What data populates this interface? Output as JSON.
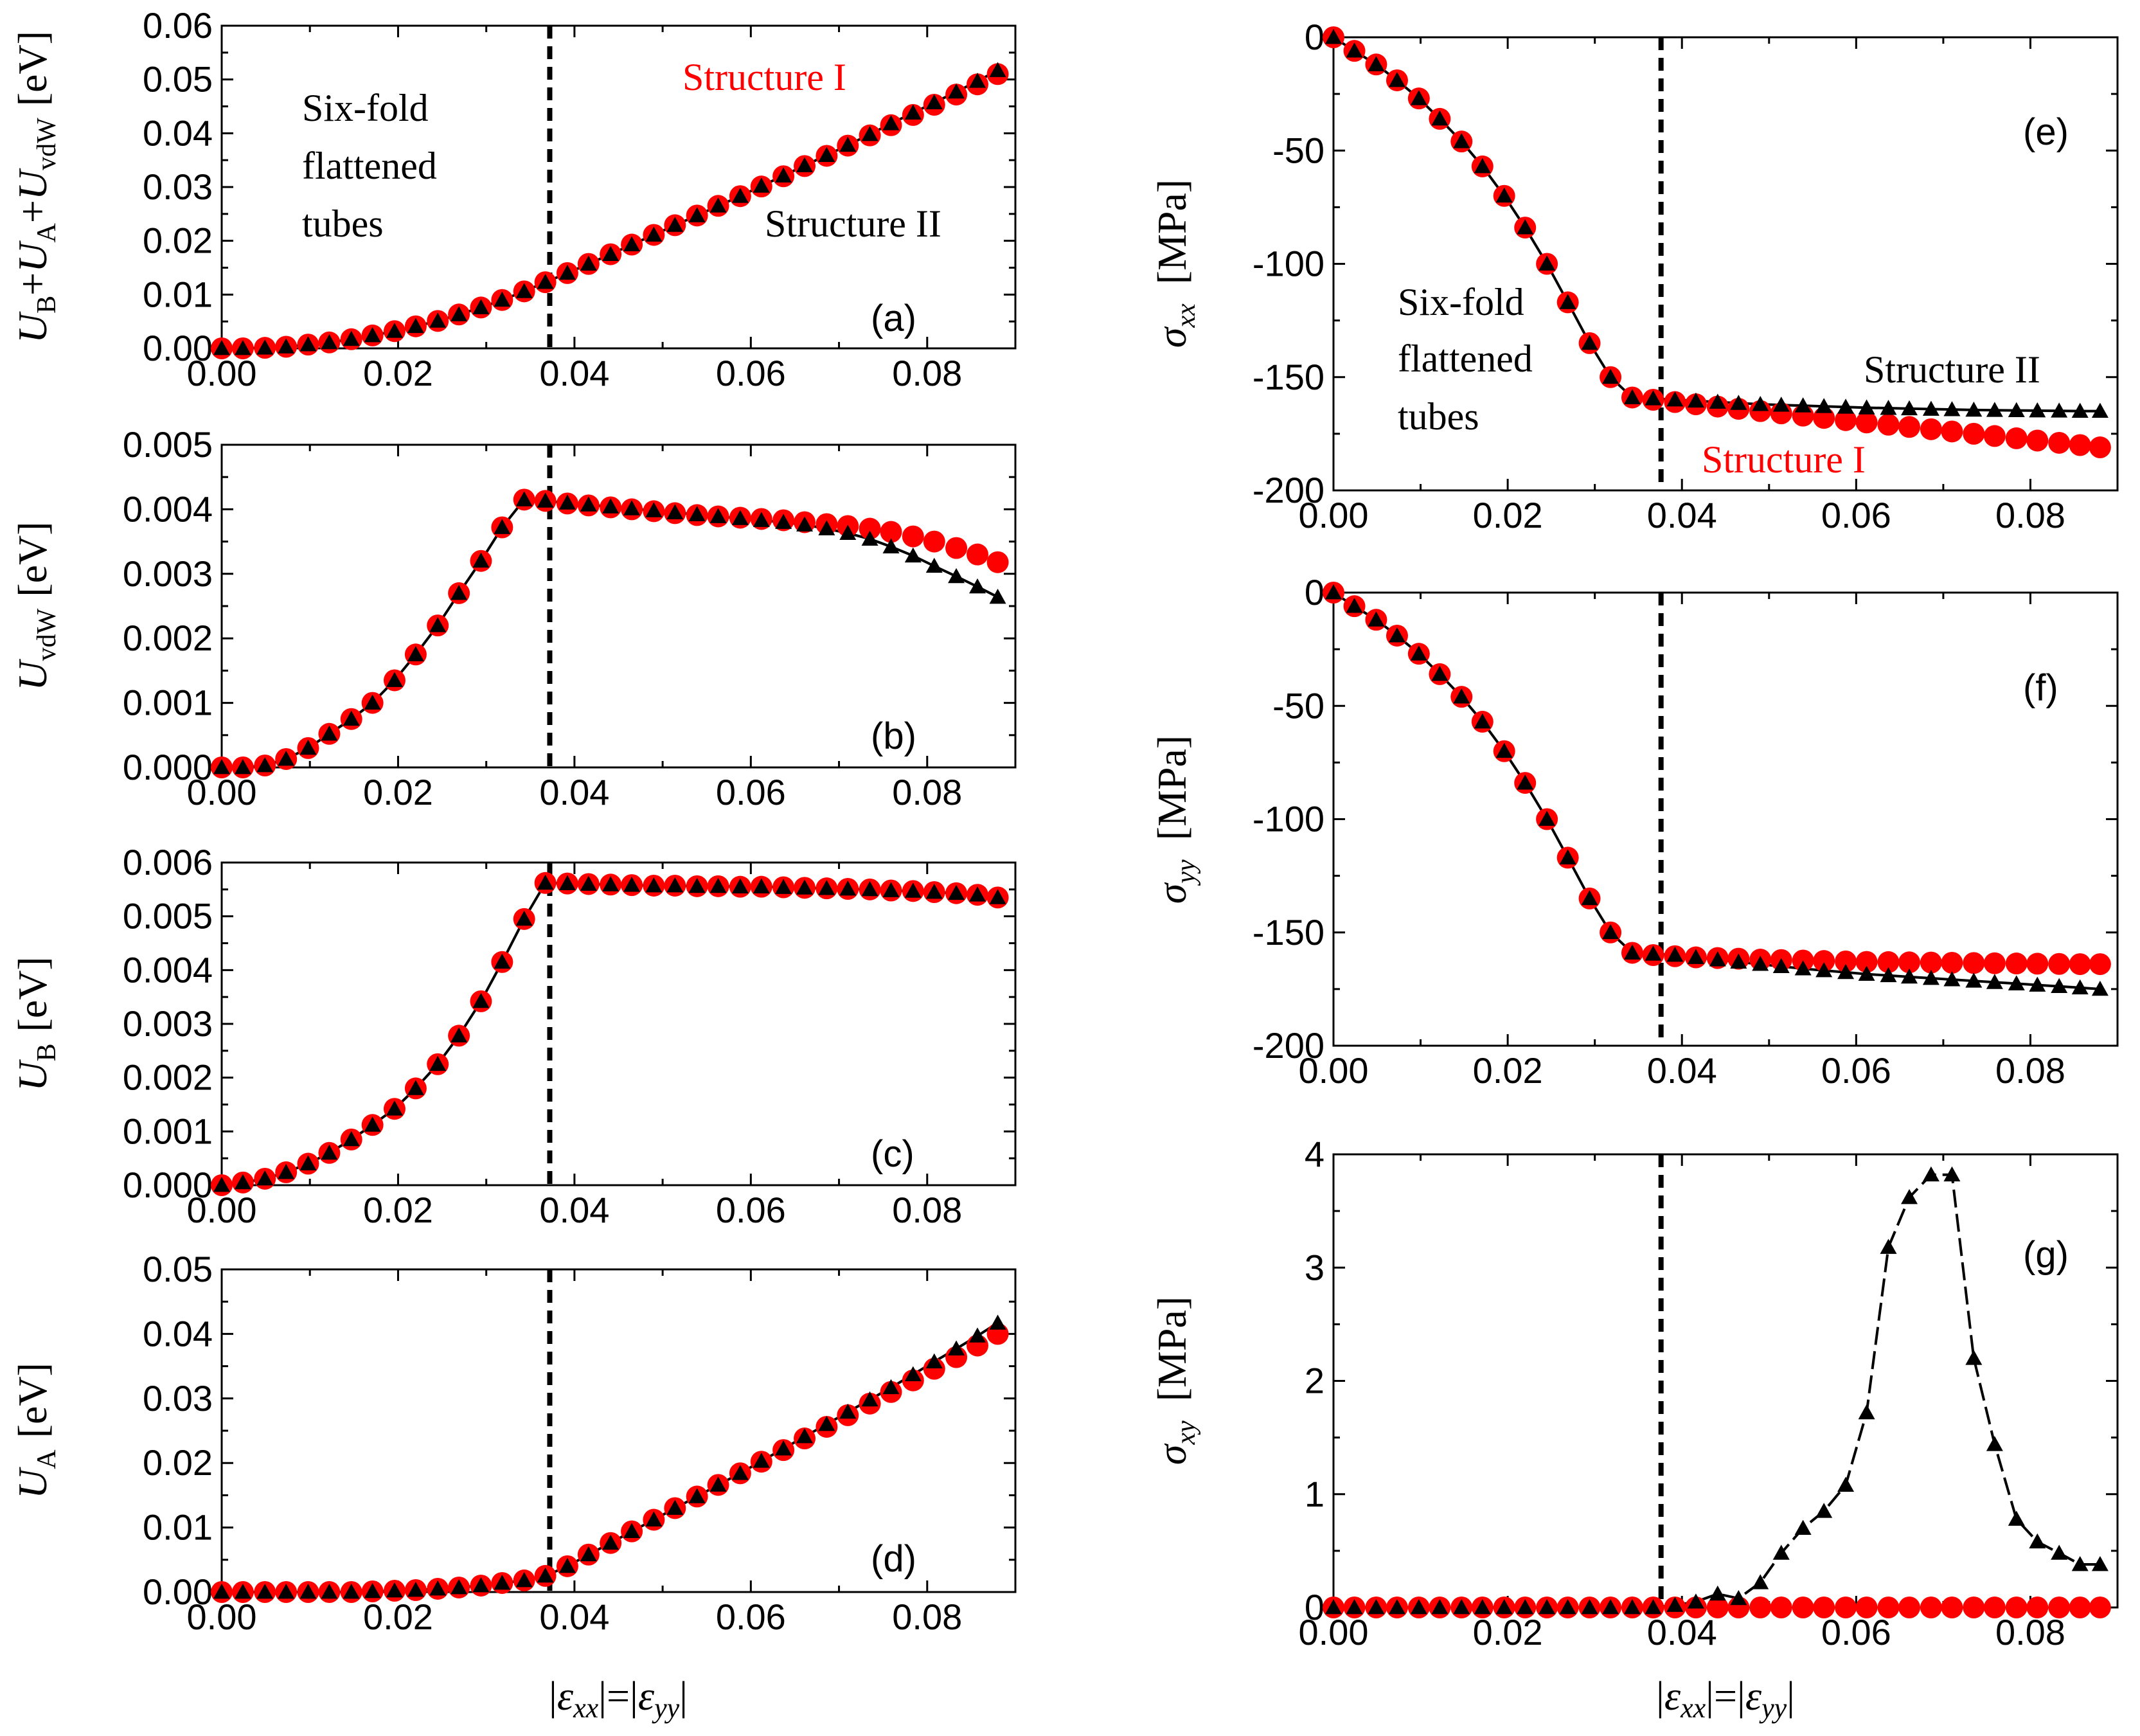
{
  "colors": {
    "structure1": "#ff0000",
    "structure2": "#000000",
    "divider": "#000000"
  },
  "x_axis_label": {
    "pre": "|",
    "eps1": "ε",
    "sub1": "xx",
    "mid": "|=|",
    "eps2": "ε",
    "sub2": "yy",
    "post": "|"
  },
  "chart_data": [
    {
      "id": "a",
      "type": "scatter",
      "panel_label": "(a)",
      "xlim": [
        0,
        0.09
      ],
      "ylim": [
        0,
        0.06
      ],
      "xticks": [
        "0.00",
        "0.02",
        "0.04",
        "0.06",
        "0.08"
      ],
      "yticks": [
        "0.00",
        "0.01",
        "0.02",
        "0.03",
        "0.04",
        "0.05",
        "0.06"
      ],
      "ylabel": {
        "u1": "U",
        "s1": "B",
        "plus1": "+",
        "u2": "U",
        "s2": "A",
        "plus2": "+",
        "u3": "U",
        "s3": "vdW",
        "unit": "[eV]"
      },
      "annotations": {
        "phase_line1": "Six-fold",
        "phase_line2": "flattened",
        "phase_line3": "tubes",
        "structure1": "Structure I",
        "structure2": "Structure II"
      },
      "vline_x": 0.0372,
      "series": [
        {
          "name": "Structure I",
          "marker": "circle",
          "values": [
            0,
            0,
            0.0001,
            0.0003,
            0.0007,
            0.0011,
            0.0017,
            0.0024,
            0.0032,
            0.0041,
            0.0051,
            0.0063,
            0.0076,
            0.009,
            0.0106,
            0.0123,
            0.014,
            0.0157,
            0.0175,
            0.0193,
            0.0211,
            0.0229,
            0.0247,
            0.0265,
            0.0283,
            0.0301,
            0.032,
            0.0339,
            0.0358,
            0.0377,
            0.0396,
            0.0415,
            0.0434,
            0.0453,
            0.0472,
            0.0491,
            0.051
          ]
        },
        {
          "name": "Structure II",
          "marker": "triangle",
          "values": [
            0,
            0,
            0.0001,
            0.0003,
            0.0007,
            0.0011,
            0.0017,
            0.0024,
            0.0032,
            0.0041,
            0.0051,
            0.0063,
            0.0076,
            0.009,
            0.0106,
            0.0123,
            0.014,
            0.0157,
            0.0175,
            0.0193,
            0.0211,
            0.0229,
            0.0247,
            0.0265,
            0.0283,
            0.0302,
            0.0321,
            0.034,
            0.0359,
            0.0378,
            0.0398,
            0.0418,
            0.0438,
            0.0457,
            0.0477,
            0.0497,
            0.0517
          ]
        }
      ]
    },
    {
      "id": "b",
      "type": "scatter",
      "panel_label": "(b)",
      "xlim": [
        0,
        0.09
      ],
      "ylim": [
        0,
        0.005
      ],
      "xticks": [
        "0.00",
        "0.02",
        "0.04",
        "0.06",
        "0.08"
      ],
      "yticks": [
        "0.000",
        "0.001",
        "0.002",
        "0.003",
        "0.004",
        "0.005"
      ],
      "ylabel": {
        "u1": "U",
        "s1": "vdW",
        "unit": "[eV]"
      },
      "vline_x": 0.0372,
      "series": [
        {
          "name": "Structure I",
          "marker": "circle",
          "values": [
            0,
            0,
            3e-05,
            0.00013,
            0.0003,
            0.00052,
            0.00075,
            0.001,
            0.00135,
            0.00175,
            0.0022,
            0.0027,
            0.0032,
            0.00372,
            0.00415,
            0.00413,
            0.00409,
            0.00406,
            0.00403,
            0.004,
            0.00397,
            0.00394,
            0.00391,
            0.00389,
            0.00387,
            0.00385,
            0.00383,
            0.0038,
            0.00377,
            0.00374,
            0.0037,
            0.00365,
            0.00358,
            0.0035,
            0.0034,
            0.0033,
            0.00318
          ]
        },
        {
          "name": "Structure II",
          "marker": "triangle",
          "values": [
            0,
            0,
            3e-05,
            0.00013,
            0.0003,
            0.00052,
            0.00075,
            0.001,
            0.00135,
            0.00175,
            0.0022,
            0.0027,
            0.0032,
            0.00372,
            0.00415,
            0.00413,
            0.0041,
            0.00407,
            0.00404,
            0.00401,
            0.00398,
            0.00395,
            0.00392,
            0.00389,
            0.00386,
            0.00383,
            0.0038,
            0.00376,
            0.0037,
            0.00363,
            0.00354,
            0.00342,
            0.00328,
            0.00312,
            0.00296,
            0.0028,
            0.00264
          ]
        }
      ]
    },
    {
      "id": "c",
      "type": "scatter",
      "panel_label": "(c)",
      "xlim": [
        0,
        0.09
      ],
      "ylim": [
        0,
        0.006
      ],
      "xticks": [
        "0.00",
        "0.02",
        "0.04",
        "0.06",
        "0.08"
      ],
      "yticks": [
        "0.000",
        "0.001",
        "0.002",
        "0.003",
        "0.004",
        "0.005",
        "0.006"
      ],
      "ylabel": {
        "u1": "U",
        "s1": "B",
        "unit": "[eV]"
      },
      "vline_x": 0.0372,
      "series": [
        {
          "name": "Structure I",
          "marker": "circle",
          "values": [
            0,
            5e-05,
            0.00012,
            0.00024,
            0.0004,
            0.0006,
            0.00085,
            0.00112,
            0.00142,
            0.0018,
            0.00225,
            0.00278,
            0.00342,
            0.00415,
            0.00495,
            0.00562,
            0.00561,
            0.0056,
            0.00559,
            0.00558,
            0.00557,
            0.00557,
            0.00556,
            0.00556,
            0.00555,
            0.00555,
            0.00554,
            0.00553,
            0.00552,
            0.00551,
            0.0055,
            0.00548,
            0.00547,
            0.00545,
            0.00543,
            0.0054,
            0.00535
          ]
        },
        {
          "name": "Structure II",
          "marker": "triangle",
          "values": [
            0,
            5e-05,
            0.00012,
            0.00024,
            0.0004,
            0.0006,
            0.00085,
            0.00112,
            0.00142,
            0.0018,
            0.00225,
            0.00278,
            0.00342,
            0.00415,
            0.00495,
            0.00562,
            0.00561,
            0.0056,
            0.00559,
            0.00558,
            0.00557,
            0.00557,
            0.00556,
            0.00556,
            0.00555,
            0.00555,
            0.00554,
            0.00553,
            0.00552,
            0.00551,
            0.0055,
            0.00548,
            0.00547,
            0.00545,
            0.00543,
            0.0054,
            0.00535
          ]
        }
      ]
    },
    {
      "id": "d",
      "type": "scatter",
      "panel_label": "(d)",
      "xlim": [
        0,
        0.09
      ],
      "ylim": [
        0,
        0.05
      ],
      "xticks": [
        "0.00",
        "0.02",
        "0.04",
        "0.06",
        "0.08"
      ],
      "yticks": [
        "0.00",
        "0.01",
        "0.02",
        "0.03",
        "0.04",
        "0.05"
      ],
      "ylabel": {
        "u1": "U",
        "s1": "A",
        "unit": "[eV]"
      },
      "vline_x": 0.0372,
      "series": [
        {
          "name": "Structure I",
          "marker": "circle",
          "values": [
            0,
            0,
            0,
            0,
            0,
            0,
            0,
            0.0001,
            0.0002,
            0.0003,
            0.0005,
            0.0007,
            0.001,
            0.0014,
            0.0018,
            0.0025,
            0.004,
            0.0058,
            0.0076,
            0.0094,
            0.0112,
            0.013,
            0.0148,
            0.0166,
            0.0184,
            0.0202,
            0.022,
            0.0238,
            0.0256,
            0.0274,
            0.0292,
            0.031,
            0.0328,
            0.0346,
            0.0364,
            0.0382,
            0.04
          ]
        },
        {
          "name": "Structure II",
          "marker": "triangle",
          "values": [
            0,
            0,
            0,
            0,
            0,
            0,
            0,
            0.0001,
            0.0002,
            0.0003,
            0.0005,
            0.0007,
            0.001,
            0.0014,
            0.0018,
            0.0025,
            0.004,
            0.0058,
            0.0076,
            0.0094,
            0.0112,
            0.013,
            0.0148,
            0.0166,
            0.0184,
            0.0203,
            0.0222,
            0.0241,
            0.026,
            0.0279,
            0.0298,
            0.0317,
            0.0337,
            0.0357,
            0.0377,
            0.0397,
            0.0417
          ]
        }
      ]
    },
    {
      "id": "e",
      "type": "scatter",
      "panel_label": "(e)",
      "xlim": [
        0,
        0.09
      ],
      "ylim": [
        -200,
        0
      ],
      "xticks": [
        "0.00",
        "0.02",
        "0.04",
        "0.06",
        "0.08"
      ],
      "yticks": [
        "-200",
        "-150",
        "-100",
        "-50",
        "0"
      ],
      "ylabel": {
        "sigma": "σ",
        "sub": "xx",
        "unit": "[MPa]"
      },
      "annotations": {
        "phase_line1": "Six-fold",
        "phase_line2": "flattened",
        "phase_line3": "tubes",
        "structure1": "Structure I",
        "structure2": "Structure II"
      },
      "vline_x": 0.0376,
      "series": [
        {
          "name": "Structure I",
          "marker": "circle",
          "values": [
            0,
            -6,
            -12,
            -19,
            -27,
            -36,
            -46,
            -57,
            -70,
            -84,
            -100,
            -117,
            -135,
            -150,
            -159,
            -160,
            -161,
            -162,
            -163,
            -164,
            -165,
            -166,
            -167,
            -168,
            -169,
            -170,
            -171,
            -172,
            -173,
            -174,
            -175,
            -176,
            -177,
            -178,
            -179,
            -180,
            -181
          ]
        },
        {
          "name": "Structure II",
          "marker": "triangle",
          "values": [
            0,
            -6,
            -12,
            -19,
            -27,
            -36,
            -46,
            -57,
            -70,
            -84,
            -100,
            -117,
            -135,
            -150,
            -159,
            -159.5,
            -160,
            -160.5,
            -161,
            -161.5,
            -162,
            -162.3,
            -162.6,
            -162.9,
            -163.2,
            -163.5,
            -163.7,
            -163.9,
            -164.1,
            -164.3,
            -164.5,
            -164.6,
            -164.7,
            -164.8,
            -164.9,
            -165,
            -165
          ]
        }
      ]
    },
    {
      "id": "f",
      "type": "scatter",
      "panel_label": "(f)",
      "xlim": [
        0,
        0.09
      ],
      "ylim": [
        -200,
        0
      ],
      "xticks": [
        "0.00",
        "0.02",
        "0.04",
        "0.06",
        "0.08"
      ],
      "yticks": [
        "-200",
        "-150",
        "-100",
        "-50",
        "0"
      ],
      "ylabel": {
        "sigma": "σ",
        "sub": "yy",
        "unit": "[MPa]"
      },
      "vline_x": 0.0376,
      "series": [
        {
          "name": "Structure I",
          "marker": "circle",
          "values": [
            0,
            -6,
            -12,
            -19,
            -27,
            -36,
            -46,
            -57,
            -70,
            -84,
            -100,
            -117,
            -135,
            -150,
            -159,
            -160,
            -160.5,
            -161,
            -161.3,
            -161.6,
            -162,
            -162.2,
            -162.4,
            -162.6,
            -162.8,
            -163,
            -163.1,
            -163.2,
            -163.3,
            -163.4,
            -163.5,
            -163.6,
            -163.7,
            -163.8,
            -163.9,
            -164,
            -164
          ]
        },
        {
          "name": "Structure II",
          "marker": "triangle",
          "values": [
            0,
            -6,
            -12,
            -19,
            -27,
            -36,
            -46,
            -57,
            -70,
            -84,
            -100,
            -117,
            -135,
            -150,
            -159,
            -159.5,
            -160,
            -161,
            -162,
            -163,
            -164,
            -165,
            -166,
            -166.8,
            -167.6,
            -168.4,
            -169,
            -169.6,
            -170.2,
            -170.8,
            -171.4,
            -172,
            -172.6,
            -173.2,
            -173.8,
            -174.4,
            -175
          ]
        }
      ]
    },
    {
      "id": "g",
      "type": "scatter",
      "panel_label": "(g)",
      "xlim": [
        0,
        0.09
      ],
      "ylim": [
        0,
        4
      ],
      "xticks": [
        "0.00",
        "0.02",
        "0.04",
        "0.06",
        "0.08"
      ],
      "yticks": [
        "0",
        "1",
        "2",
        "3",
        "4"
      ],
      "ylabel": {
        "sigma": "σ",
        "sub": "xy",
        "unit": "[MPa]"
      },
      "vline_x": 0.0376,
      "series": [
        {
          "name": "Structure I",
          "marker": "circle",
          "values": [
            0,
            0,
            0,
            0,
            0,
            0,
            0,
            0,
            0,
            0,
            0,
            0,
            0,
            0,
            0,
            0,
            0,
            0,
            0,
            0,
            0,
            0,
            0,
            0,
            0,
            0,
            0,
            0,
            0,
            0,
            0,
            0,
            0,
            0,
            0,
            0,
            0
          ]
        },
        {
          "name": "Structure II",
          "marker": "triangle",
          "values": [
            0,
            0,
            0,
            0,
            0,
            0,
            0,
            0,
            0,
            0,
            0,
            0,
            0,
            0,
            0,
            0,
            0.02,
            0.05,
            0.12,
            0.08,
            0.22,
            0.48,
            0.7,
            0.85,
            1.08,
            1.72,
            3.18,
            3.62,
            3.82,
            3.82,
            2.2,
            1.44,
            0.78,
            0.58,
            0.48,
            0.38,
            0.38
          ]
        }
      ]
    }
  ],
  "x_values": [
    0,
    0.0024,
    0.0049,
    0.0073,
    0.0098,
    0.0122,
    0.0147,
    0.0171,
    0.0196,
    0.022,
    0.0245,
    0.0269,
    0.0294,
    0.0318,
    0.0343,
    0.0367,
    0.0392,
    0.0416,
    0.0441,
    0.0465,
    0.049,
    0.0514,
    0.0539,
    0.0563,
    0.0588,
    0.0612,
    0.0637,
    0.0661,
    0.0686,
    0.071,
    0.0735,
    0.0759,
    0.0784,
    0.0808,
    0.0833,
    0.0857,
    0.088
  ]
}
